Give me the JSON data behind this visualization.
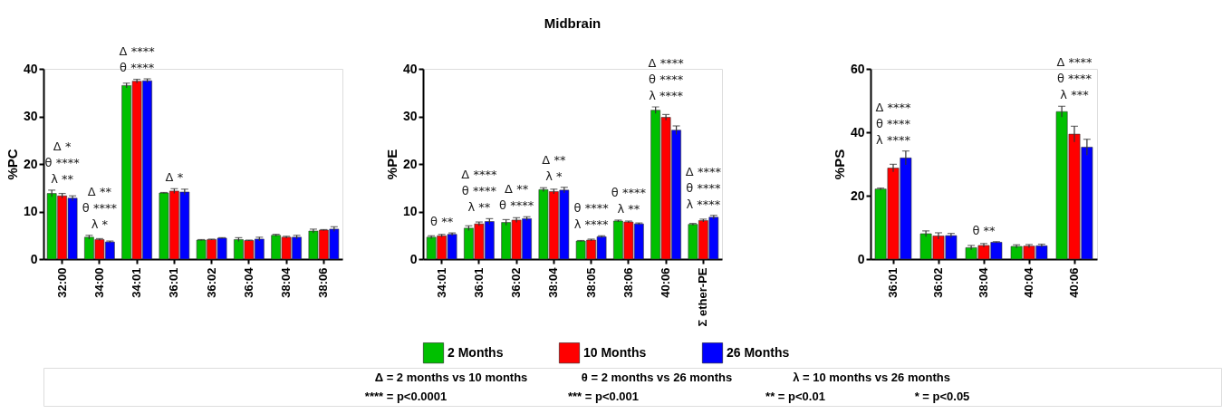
{
  "chart_data": [
    {
      "type": "bar",
      "ylabel": "%PC",
      "categories": [
        "32:00",
        "34:00",
        "34:01",
        "36:01",
        "36:02",
        "36:04",
        "38:04",
        "38:06"
      ],
      "series": [
        {
          "color": "#00c000",
          "values": [
            13.8,
            4.6,
            36.5,
            13.9,
            4.0,
            4.1,
            5.0,
            5.9
          ],
          "errors": [
            0.7,
            0.4,
            0.5,
            0.1,
            0.1,
            0.4,
            0.2,
            0.4
          ]
        },
        {
          "color": "#ff0000",
          "values": [
            13.3,
            4.1,
            37.4,
            14.3,
            4.1,
            3.9,
            4.6,
            6.1
          ],
          "errors": [
            0.5,
            0.2,
            0.4,
            0.5,
            0.1,
            0.1,
            0.2,
            0.1
          ]
        },
        {
          "color": "#0000ff",
          "values": [
            12.8,
            3.6,
            37.5,
            14.1,
            4.4,
            4.2,
            4.6,
            6.3
          ],
          "errors": [
            0.5,
            0.2,
            0.4,
            0.6,
            0.1,
            0.4,
            0.4,
            0.5
          ]
        }
      ],
      "ylim": [
        0,
        40
      ],
      "yticks": [
        0,
        10,
        20,
        30,
        40
      ],
      "grid": false,
      "annotations": [
        "Δ *",
        "θ ****",
        "λ **",
        "Δ **",
        "θ ****",
        "λ *",
        "Δ ****",
        "θ ****",
        "Δ *"
      ]
    },
    {
      "type": "bar",
      "title": "Midbrain",
      "ylabel": "%PE",
      "categories": [
        "34:01",
        "36:01",
        "36:02",
        "38:04",
        "38:05",
        "38:06",
        "40:06",
        "Σ ether-PE"
      ],
      "series": [
        {
          "name": "2 Months",
          "color": "#00c000",
          "values": [
            4.6,
            6.5,
            7.7,
            14.6,
            3.8,
            8.0,
            31.3,
            7.3
          ],
          "errors": [
            0.3,
            0.5,
            0.6,
            0.4,
            0.1,
            0.2,
            0.7,
            0.2
          ]
        },
        {
          "name": "10 Months",
          "color": "#ff0000",
          "values": [
            4.9,
            7.4,
            8.2,
            14.2,
            4.0,
            7.8,
            29.8,
            8.1
          ],
          "errors": [
            0.3,
            0.4,
            0.5,
            0.5,
            0.2,
            0.2,
            0.6,
            0.3
          ]
        },
        {
          "name": "26 Months",
          "color": "#0000ff",
          "values": [
            5.2,
            7.9,
            8.5,
            14.5,
            4.7,
            7.4,
            27.1,
            8.8
          ],
          "errors": [
            0.3,
            0.6,
            0.4,
            0.6,
            0.2,
            0.2,
            0.9,
            0.4
          ]
        }
      ],
      "ylim": [
        0,
        40
      ],
      "yticks": [
        0,
        10,
        20,
        30,
        40
      ],
      "grid": false,
      "legend": "bottom",
      "annotations": [
        "θ **",
        "Δ ****",
        "θ ****",
        "λ **",
        "Δ **",
        "θ ****",
        "Δ **",
        "λ *",
        "θ ****",
        "λ ****",
        "θ ****",
        "λ **",
        "Δ ****",
        "θ ****",
        "λ ****",
        "Δ ****",
        "θ ****",
        "λ ****",
        "Δ = 2 months vs 10 months",
        "θ = 2 months vs 26 months",
        "λ = 10 months vs 26 months",
        "**** = p<0.0001",
        "*** = p<0.001",
        "** = p<0.01",
        "* = p<0.05"
      ]
    },
    {
      "type": "bar",
      "ylabel": "%PS",
      "categories": [
        "36:01",
        "36:02",
        "38:04",
        "40:04",
        "40:06"
      ],
      "series": [
        {
          "color": "#00c000",
          "values": [
            22.1,
            8.0,
            3.6,
            4.0,
            46.5
          ],
          "errors": [
            0.3,
            0.9,
            0.7,
            0.5,
            1.7
          ]
        },
        {
          "color": "#ff0000",
          "values": [
            28.7,
            7.3,
            4.3,
            4.1,
            39.4
          ],
          "errors": [
            1.2,
            1.0,
            0.6,
            0.5,
            2.5
          ]
        },
        {
          "color": "#0000ff",
          "values": [
            31.9,
            7.4,
            5.3,
            4.2,
            35.3
          ],
          "errors": [
            2.2,
            0.7,
            0.2,
            0.5,
            2.5
          ]
        }
      ],
      "ylim": [
        0,
        60
      ],
      "yticks": [
        0,
        20,
        40,
        60
      ],
      "grid": false,
      "annotations": [
        "Δ ****",
        "θ ****",
        "λ ****",
        "θ **",
        "Δ ****",
        "θ ****",
        "λ ***"
      ]
    }
  ]
}
